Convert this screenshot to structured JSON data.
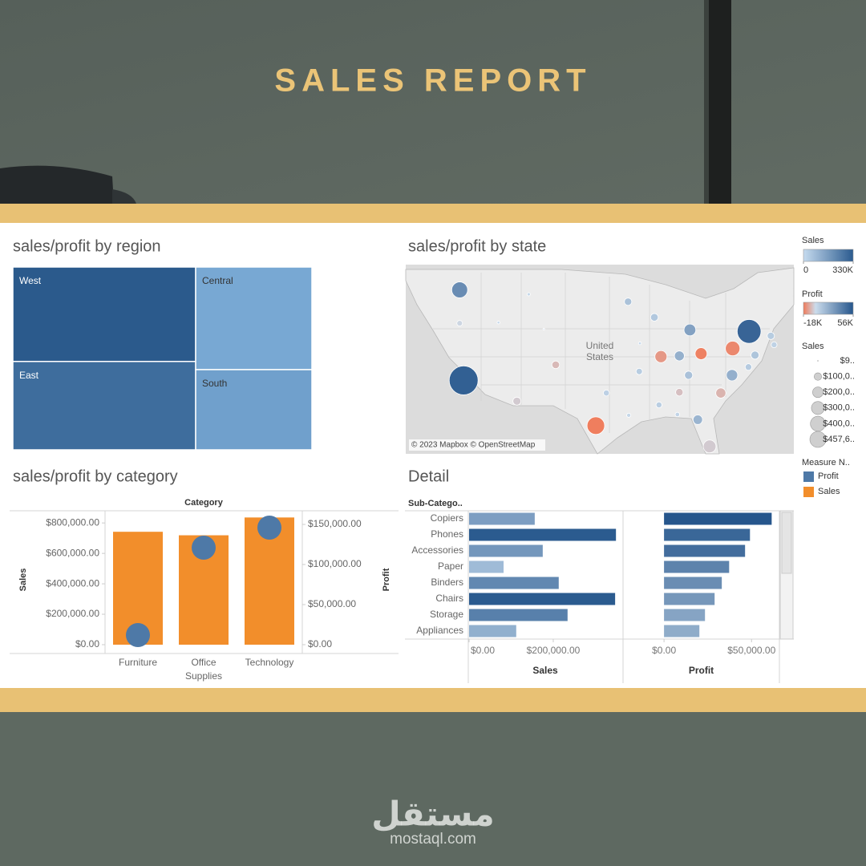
{
  "header": {
    "title": "SALES REPORT"
  },
  "footer": {
    "brand_arabic": "مستقل",
    "brand": "mostaql.com"
  },
  "chart_data": [
    {
      "type": "treemap",
      "title": "sales/profit by region",
      "categories": [
        "West",
        "East",
        "Central",
        "South"
      ],
      "values": [
        725458,
        678781,
        501240,
        391722
      ],
      "color_values": [
        108418,
        91523,
        39706,
        46749
      ],
      "colors": [
        "#78a8d3",
        "#2b5a8c"
      ]
    },
    {
      "type": "map",
      "title": "sales/profit by state",
      "annotation": "United States",
      "attribution": "© 2023 Mapbox © OpenStreetMap",
      "xlim": [
        -125.5,
        -66.5
      ],
      "ylim": [
        24.5,
        50
      ],
      "x": [
        -117.3,
        -117.3,
        -116.7,
        -106.8,
        -111.4,
        -108.6,
        -102.7,
        -96.6,
        -91.7,
        -87.7,
        -82.3,
        -86.7,
        -83.9,
        -80.6,
        -75.8,
        -73.3,
        -72.4,
        -70.0,
        -69.5,
        -75.9,
        -73.4,
        -82.5,
        -77.6,
        -83.9,
        -81.1,
        -79.3,
        -90.0,
        -95.0,
        -91.6,
        -87.0,
        -84.2,
        -89.9,
        -104.5
      ],
      "y": [
        46.6,
        42.1,
        34.4,
        46.0,
        42.2,
        31.6,
        36.5,
        28.3,
        45.0,
        42.9,
        41.2,
        37.6,
        37.7,
        38.0,
        38.7,
        41.0,
        37.8,
        40.4,
        39.2,
        35.1,
        36.2,
        35.1,
        32.7,
        32.8,
        29.1,
        25.5,
        35.6,
        32.7,
        29.7,
        31.1,
        29.8,
        39.4,
        41.3
      ],
      "values": [
        138641,
        17431,
        457688,
        5589,
        4382,
        35282,
        32108,
        170188,
        29863,
        32115,
        76270,
        80166,
        53555,
        78258,
        116512,
        310876,
        35764,
        28634,
        19000,
        70637,
        23706,
        36592,
        55603,
        30662,
        49096,
        89474,
        22205,
        19683,
        9217,
        19511,
        10771,
        4580,
        1603
      ],
      "color_values": [
        33403,
        -1190,
        52000,
        1834,
        827,
        -3428,
        -6528,
        -17500,
        10823,
        8401,
        24463,
        -12608,
        18383,
        -16971,
        -15560,
        50000,
        9772,
        6785,
        4000,
        18598,
        7031,
        11200,
        -7490,
        -5341,
        16250,
        -3399,
        6436,
        4854,
        2196,
        5787,
        3172,
        1183,
        100
      ]
    },
    {
      "type": "bar-circle",
      "title": "sales/profit by category",
      "x_label": "Category",
      "categories": [
        "Furniture",
        "Office Supplies",
        "Technology"
      ],
      "series": [
        {
          "name": "Sales",
          "color": "#f28e2b",
          "values": [
            742000,
            719000,
            836000
          ]
        },
        {
          "name": "Profit",
          "color": "#4e79a7",
          "axis": "y2",
          "values": [
            12000,
            121000,
            146000
          ]
        }
      ],
      "y_label": "Sales",
      "y2_label": "Profit",
      "ylim": [
        -58000,
        880000
      ],
      "yticks": [
        {
          "value": 0,
          "label": "$0.00"
        },
        {
          "value": 200000,
          "label": "$200,000.00"
        },
        {
          "value": 400000,
          "label": "$400,000.00"
        },
        {
          "value": 600000,
          "label": "$600,000.00"
        },
        {
          "value": 800000,
          "label": "$800,000.00"
        }
      ],
      "y2lim": [
        -11000,
        167000
      ],
      "y2ticks": [
        {
          "value": 0,
          "label": "$0.00"
        },
        {
          "value": 50000,
          "label": "$50,000.00"
        },
        {
          "value": 100000,
          "label": "$100,000.00"
        },
        {
          "value": 150000,
          "label": "$150,000.00"
        }
      ]
    },
    {
      "type": "detail-bars",
      "title": "Detail",
      "category_label": "Sub-Catego..",
      "categories": [
        "Copiers",
        "Phones",
        "Accessories",
        "Paper",
        "Binders",
        "Chairs",
        "Storage",
        "Appliances"
      ],
      "panels": [
        {
          "x_label": "Sales",
          "values": [
            156000,
            349000,
            175000,
            82000,
            213000,
            347000,
            234000,
            112000
          ],
          "xlim": [
            0,
            362000
          ],
          "xticks": [
            {
              "value": 0,
              "label": "$0.00"
            },
            {
              "value": 200000,
              "label": "$200,000.00"
            }
          ]
        },
        {
          "x_label": "Profit",
          "values": [
            61500,
            49100,
            46300,
            37200,
            33000,
            28900,
            23400,
            20200
          ],
          "xlim": [
            -22500,
            65000
          ],
          "xticks": [
            {
              "value": 0,
              "label": "$0.00"
            },
            {
              "value": 50000,
              "label": "$50,000.00"
            }
          ]
        }
      ]
    }
  ],
  "legends": {
    "sales_color": {
      "title": "Sales",
      "colors": [
        "#c6dbef",
        "#2b5b8f"
      ],
      "ticks": [
        0,
        {
          "value": 330000,
          "label": "330K"
        }
      ]
    },
    "profit_color": {
      "title": "Profit",
      "colors": [
        "#f07b5a",
        "#cbdcec",
        "#26568c"
      ],
      "ticks": [
        {
          "value": -18000,
          "label": "-18K"
        },
        {
          "value": 56000,
          "label": "56K"
        }
      ]
    },
    "sales_size": {
      "title": "Sales",
      "values": [
        919,
        100000,
        200000,
        300000,
        400000,
        457600
      ],
      "value_labels": [
        "$9..",
        "$100,0..",
        "$200,0..",
        "$300,0..",
        "$400,0..",
        "$457,6.."
      ]
    },
    "measure": {
      "title": "Measure N.."
    }
  }
}
